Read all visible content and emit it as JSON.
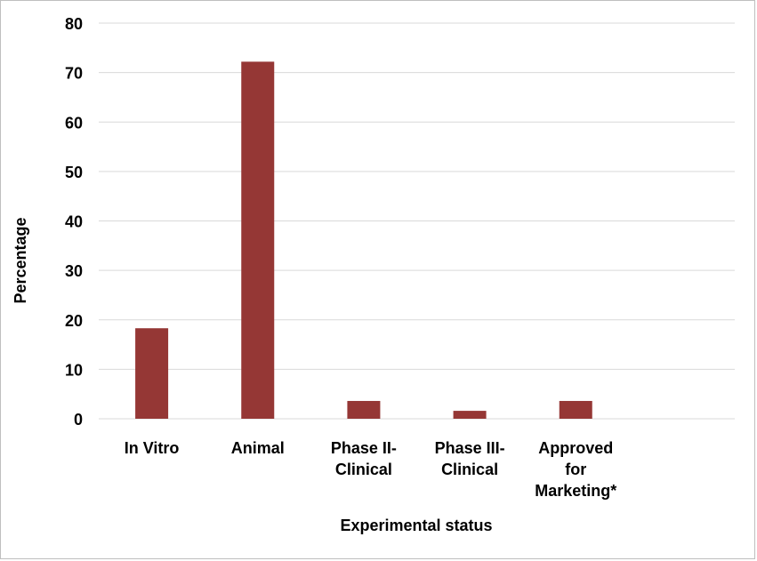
{
  "chart_data": {
    "type": "bar",
    "title": "",
    "xlabel": "Experimental status",
    "ylabel": "Percentage",
    "categories": [
      [
        "In Vitro"
      ],
      [
        "Animal"
      ],
      [
        "Phase II-",
        "Clinical"
      ],
      [
        "Phase III-",
        "Clinical"
      ],
      [
        "Approved",
        "for",
        "Marketing*"
      ],
      [
        ""
      ]
    ],
    "values": [
      18.3,
      72.2,
      3.6,
      1.6,
      3.6,
      null
    ],
    "ylim": [
      0,
      80
    ],
    "yticks": [
      0,
      10,
      20,
      30,
      40,
      50,
      60,
      70,
      80
    ],
    "grid": true,
    "legend": "none",
    "colors": {
      "bar": "#953735",
      "grid": "#d9d9d9"
    }
  }
}
